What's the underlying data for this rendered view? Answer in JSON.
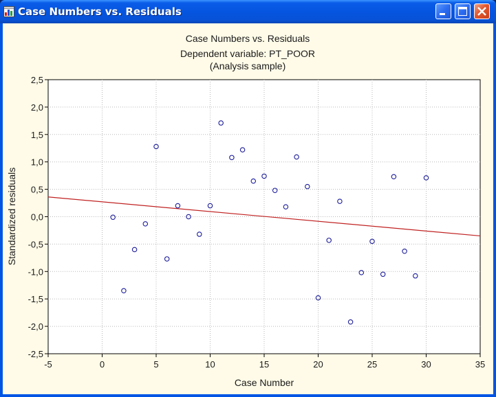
{
  "window": {
    "title": "Case Numbers vs. Residuals",
    "icons": [
      "chart-app-icon",
      "minimize-icon",
      "maximize-icon",
      "close-icon"
    ]
  },
  "colors": {
    "titlebar": "#0755de",
    "plot_background": "#ffffff",
    "frame_background": "#fffbe8",
    "marker": "#1c1c9a",
    "fit_line": "#c02020",
    "grid": "#b8b8b8"
  },
  "chart_data": {
    "type": "scatter",
    "title": "Case Numbers vs. Residuals",
    "subtitle_lines": [
      "Dependent variable: PT_POOR",
      "(Analysis sample)"
    ],
    "xlabel": "Case Number",
    "ylabel": "Standardized residuals",
    "xlim": [
      -5,
      35
    ],
    "ylim": [
      -2.5,
      2.5
    ],
    "xticks": [
      -5,
      0,
      5,
      10,
      15,
      20,
      25,
      30,
      35
    ],
    "yticks": [
      2.5,
      2.0,
      1.5,
      1.0,
      0.5,
      0.0,
      -0.5,
      -1.0,
      -1.5,
      -2.0,
      -2.5
    ],
    "xtick_labels": [
      "-5",
      "0",
      "5",
      "10",
      "15",
      "20",
      "25",
      "30",
      "35"
    ],
    "ytick_labels": [
      "2,5",
      "2,0",
      "1,5",
      "1,0",
      "0,5",
      "0,0",
      "-0,5",
      "-1,0",
      "-1,5",
      "-2,0",
      "-2,5"
    ],
    "grid": true,
    "marker": "open-circle",
    "points": [
      {
        "x": 1,
        "y": -0.01
      },
      {
        "x": 2,
        "y": -1.35
      },
      {
        "x": 3,
        "y": -0.6
      },
      {
        "x": 4,
        "y": -0.13
      },
      {
        "x": 5,
        "y": 1.28
      },
      {
        "x": 6,
        "y": -0.77
      },
      {
        "x": 7,
        "y": 0.2
      },
      {
        "x": 8,
        "y": 0.0
      },
      {
        "x": 9,
        "y": -0.32
      },
      {
        "x": 10,
        "y": 0.2
      },
      {
        "x": 11,
        "y": 1.71
      },
      {
        "x": 12,
        "y": 1.08
      },
      {
        "x": 13,
        "y": 1.22
      },
      {
        "x": 14,
        "y": 0.65
      },
      {
        "x": 15,
        "y": 0.74
      },
      {
        "x": 16,
        "y": 0.48
      },
      {
        "x": 17,
        "y": 0.18
      },
      {
        "x": 18,
        "y": 1.09
      },
      {
        "x": 19,
        "y": 0.55
      },
      {
        "x": 20,
        "y": -1.48
      },
      {
        "x": 21,
        "y": -0.43
      },
      {
        "x": 22,
        "y": 0.28
      },
      {
        "x": 23,
        "y": -1.92
      },
      {
        "x": 24,
        "y": -1.02
      },
      {
        "x": 25,
        "y": -0.45
      },
      {
        "x": 26,
        "y": -1.05
      },
      {
        "x": 27,
        "y": 0.73
      },
      {
        "x": 28,
        "y": -0.63
      },
      {
        "x": 29,
        "y": -1.08
      },
      {
        "x": 30,
        "y": 0.71
      }
    ],
    "fit_line": {
      "x": [
        -5,
        35
      ],
      "y": [
        0.36,
        -0.35
      ]
    }
  }
}
